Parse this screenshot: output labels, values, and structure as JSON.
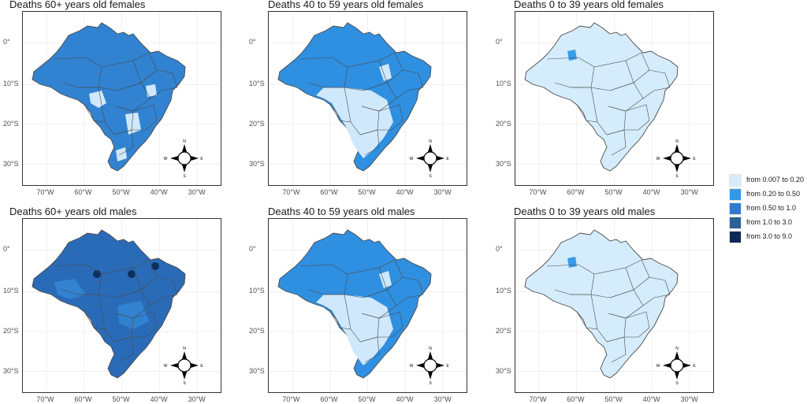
{
  "panels": [
    {
      "title": "Deaths 60+ years old females",
      "fill": "#3182d0",
      "patch": "#2a6fbf",
      "light": "#cfe8fb",
      "lightness": "med"
    },
    {
      "title": "Deaths 40 to 59 years old females",
      "fill": "#2f8fe0",
      "patch": "#2a6fbf",
      "light": "#cfe8fb",
      "lightness": "mixed"
    },
    {
      "title": "Deaths 0 to 39 years old females",
      "fill": "#d4ecfb",
      "patch": "#3a9be8",
      "light": "#d4ecfb",
      "lightness": "light"
    },
    {
      "title": "Deaths 60+ years old males",
      "fill": "#2a6bb8",
      "patch": "#0d2f5e",
      "light": "#3182d0",
      "lightness": "dark"
    },
    {
      "title": "Deaths 40 to 59 years old males",
      "fill": "#2f8fe0",
      "patch": "#2a6fbf",
      "light": "#cfe8fb",
      "lightness": "mixed"
    },
    {
      "title": "Deaths 0 to 39 years old males",
      "fill": "#d4ecfb",
      "patch": "#3a9be8",
      "light": "#d4ecfb",
      "lightness": "light"
    }
  ],
  "axes": {
    "y_ticks": [
      "0°",
      "10°S",
      "20°S",
      "30°S"
    ],
    "x_ticks": [
      "70°W",
      "60°W",
      "50°W",
      "40°W",
      "30°W"
    ]
  },
  "compass": {
    "n": "N",
    "s": "S",
    "e": "E",
    "w": "W"
  },
  "legend": [
    {
      "label": "from 0.007 to 0.20",
      "color": "#d6ecfa"
    },
    {
      "label": "from 0.20 to 0.50",
      "color": "#3498e6"
    },
    {
      "label": "from 0.50 to 1.0",
      "color": "#2c7ccf"
    },
    {
      "label": "from 1.0 to 3.0",
      "color": "#2a5f9a"
    },
    {
      "label": "from 3.0 to 9.0",
      "color": "#0b2a55"
    }
  ]
}
